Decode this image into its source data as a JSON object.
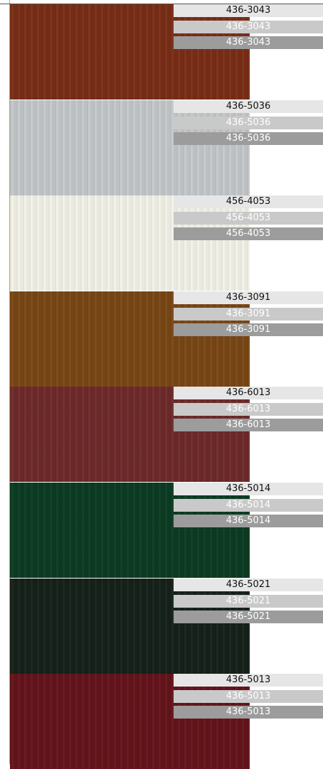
{
  "swatches": [
    {
      "code": "436-3043",
      "color": "#7a2e17"
    },
    {
      "code": "436-5036",
      "color": "#c4c8cb"
    },
    {
      "code": "456-4053",
      "color": "#f3f2e8"
    },
    {
      "code": "436-3091",
      "color": "#7a4716"
    },
    {
      "code": "436-6013",
      "color": "#6e2a2b"
    },
    {
      "code": "436-5014",
      "color": "#0b3b22"
    },
    {
      "code": "436-5021",
      "color": "#15211a"
    },
    {
      "code": "436-5013",
      "color": "#64141b"
    }
  ]
}
